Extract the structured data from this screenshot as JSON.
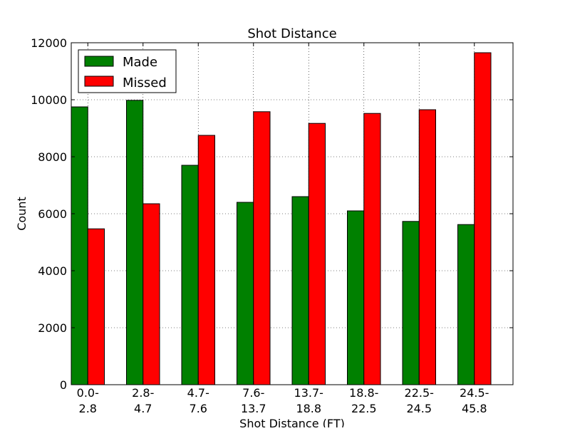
{
  "chart_data": {
    "type": "bar",
    "title": "Shot Distance",
    "xlabel": "Shot Distance (FT)",
    "ylabel": "Count",
    "categories": [
      [
        "0.0-",
        "2.8"
      ],
      [
        "2.8-",
        "4.7"
      ],
      [
        "4.7-",
        "7.6"
      ],
      [
        "7.6-",
        "13.7"
      ],
      [
        "13.7-",
        "18.8"
      ],
      [
        "18.8-",
        "22.5"
      ],
      [
        "22.5-",
        "24.5"
      ],
      [
        "24.5-",
        "45.8"
      ]
    ],
    "series": [
      {
        "name": "Made",
        "color": "#008000",
        "values": [
          9750,
          9980,
          7700,
          6400,
          6600,
          6100,
          5730,
          5620
        ]
      },
      {
        "name": "Missed",
        "color": "#ff0000",
        "values": [
          5470,
          6350,
          8750,
          9580,
          9170,
          9520,
          9650,
          11650
        ]
      }
    ],
    "ylim": [
      0,
      12000
    ],
    "yticks": [
      0,
      2000,
      4000,
      6000,
      8000,
      10000,
      12000
    ],
    "grid": true,
    "legend": "top-left"
  }
}
